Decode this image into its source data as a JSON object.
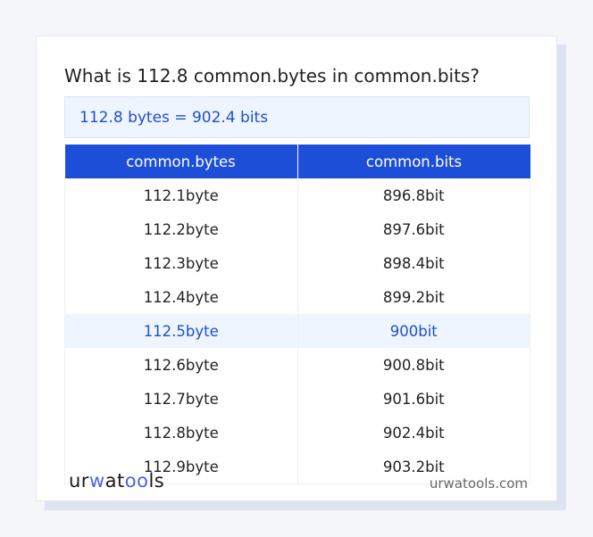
{
  "title": "What is 112.8 common.bytes in common.bits?",
  "result": "112.8 bytes = 902.4 bits",
  "table": {
    "headers": [
      "common.bytes",
      "common.bits"
    ],
    "rows": [
      [
        "112.1byte",
        "896.8bit"
      ],
      [
        "112.2byte",
        "897.6bit"
      ],
      [
        "112.3byte",
        "898.4bit"
      ],
      [
        "112.4byte",
        "899.2bit"
      ],
      [
        "112.5byte",
        "900bit"
      ],
      [
        "112.6byte",
        "900.8bit"
      ],
      [
        "112.7byte",
        "901.6bit"
      ],
      [
        "112.8byte",
        "902.4bit"
      ],
      [
        "112.9byte",
        "903.2bit"
      ]
    ],
    "highlighted_row": 4
  },
  "footer": {
    "logo": "urwatools",
    "site": "urwatools.com"
  },
  "colors": {
    "accent": "#1d4ed8",
    "highlight_bg": "#eef5fe"
  }
}
